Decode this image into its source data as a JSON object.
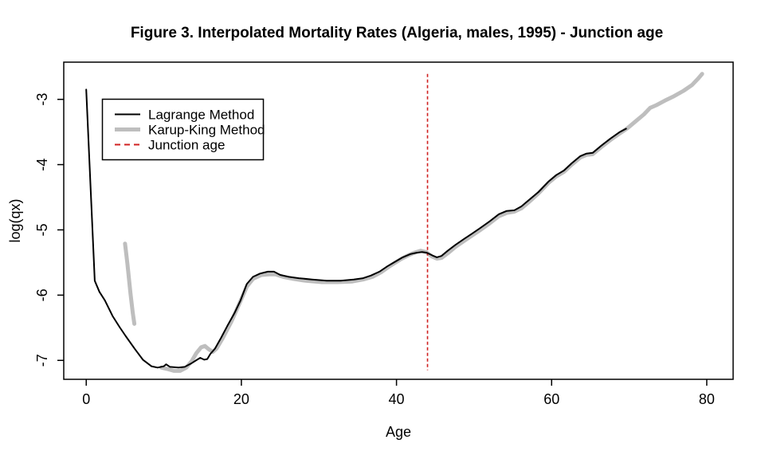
{
  "page": {
    "background": "#FFFFFF"
  },
  "chart_data": {
    "type": "line",
    "title": "Figure 3. Interpolated Mortality Rates (Algeria, males, 1995) - Junction age",
    "xlabel": "Age",
    "ylabel": "log(qx)",
    "xlim": [
      -2.9,
      83.4
    ],
    "ylim": [
      -7.29,
      -2.43
    ],
    "x_ticks": [
      0,
      20,
      40,
      60,
      80
    ],
    "y_ticks": [
      -7,
      -6,
      -5,
      -4,
      -3
    ],
    "grid": "off",
    "junction_age": 44,
    "junction_line": {
      "age": 44,
      "color": "#D02020",
      "style": "dashed",
      "from": -2.61,
      "to": -7.15
    },
    "legend": {
      "position": "top-left",
      "items": [
        {
          "label": "Lagrange Method",
          "swatch": "black-solid-line"
        },
        {
          "label": "Karup-King Method",
          "swatch": "thick-gray-line"
        },
        {
          "label": "Junction age",
          "swatch": "red-dashed-line"
        }
      ]
    },
    "series": [
      {
        "name": "Lagrange Method",
        "color": "#000000",
        "line_width": 2,
        "points": [
          [
            0.0,
            -2.85
          ],
          [
            1.1,
            -5.78
          ],
          [
            1.7,
            -5.95
          ],
          [
            2.4,
            -6.08
          ],
          [
            3.4,
            -6.32
          ],
          [
            4.3,
            -6.49
          ],
          [
            5.1,
            -6.63
          ],
          [
            6.3,
            -6.83
          ],
          [
            7.3,
            -6.99
          ],
          [
            8.4,
            -7.09
          ],
          [
            9.2,
            -7.11
          ],
          [
            10.0,
            -7.09
          ],
          [
            10.3,
            -7.06
          ],
          [
            10.8,
            -7.1
          ],
          [
            11.9,
            -7.11
          ],
          [
            12.7,
            -7.1
          ],
          [
            13.5,
            -7.05
          ],
          [
            14.3,
            -6.99
          ],
          [
            14.7,
            -6.96
          ],
          [
            15.2,
            -6.99
          ],
          [
            15.6,
            -6.98
          ],
          [
            16.0,
            -6.9
          ],
          [
            16.6,
            -6.82
          ],
          [
            17.4,
            -6.65
          ],
          [
            18.2,
            -6.47
          ],
          [
            19.1,
            -6.28
          ],
          [
            19.9,
            -6.08
          ],
          [
            20.7,
            -5.83
          ],
          [
            21.5,
            -5.72
          ],
          [
            22.4,
            -5.67
          ],
          [
            23.4,
            -5.64
          ],
          [
            24.2,
            -5.64
          ],
          [
            25.0,
            -5.69
          ],
          [
            26.1,
            -5.72
          ],
          [
            27.4,
            -5.74
          ],
          [
            29.1,
            -5.76
          ],
          [
            31.0,
            -5.78
          ],
          [
            32.8,
            -5.78
          ],
          [
            34.5,
            -5.76
          ],
          [
            35.7,
            -5.74
          ],
          [
            36.7,
            -5.7
          ],
          [
            37.8,
            -5.64
          ],
          [
            38.8,
            -5.56
          ],
          [
            39.8,
            -5.49
          ],
          [
            40.8,
            -5.42
          ],
          [
            41.8,
            -5.37
          ],
          [
            42.6,
            -5.35
          ],
          [
            43.3,
            -5.34
          ],
          [
            43.9,
            -5.35
          ],
          [
            44.6,
            -5.39
          ],
          [
            45.2,
            -5.42
          ],
          [
            45.8,
            -5.4
          ],
          [
            46.6,
            -5.32
          ],
          [
            47.6,
            -5.23
          ],
          [
            48.7,
            -5.14
          ],
          [
            49.7,
            -5.06
          ],
          [
            50.7,
            -4.98
          ],
          [
            52.0,
            -4.87
          ],
          [
            53.2,
            -4.76
          ],
          [
            54.2,
            -4.71
          ],
          [
            55.2,
            -4.7
          ],
          [
            56.1,
            -4.64
          ],
          [
            57.1,
            -4.54
          ],
          [
            58.3,
            -4.42
          ],
          [
            59.6,
            -4.26
          ],
          [
            60.6,
            -4.16
          ],
          [
            61.6,
            -4.09
          ],
          [
            62.6,
            -3.98
          ],
          [
            63.7,
            -3.87
          ],
          [
            64.5,
            -3.83
          ],
          [
            65.3,
            -3.82
          ],
          [
            66.3,
            -3.72
          ],
          [
            67.6,
            -3.6
          ],
          [
            68.8,
            -3.5
          ],
          [
            69.6,
            -3.45
          ]
        ]
      },
      {
        "name": "Karup-King Method",
        "color": "#BEBEBE",
        "line_width": 5,
        "segments": [
          [
            [
              5.0,
              -5.21
            ],
            [
              5.3,
              -5.51
            ],
            [
              5.7,
              -5.97
            ],
            [
              6.0,
              -6.27
            ],
            [
              6.2,
              -6.44
            ]
          ],
          [
            [
              9.7,
              -7.11
            ],
            [
              10.4,
              -7.13
            ],
            [
              11.3,
              -7.16
            ],
            [
              12.1,
              -7.16
            ],
            [
              12.9,
              -7.11
            ],
            [
              13.6,
              -7.01
            ],
            [
              14.2,
              -6.89
            ],
            [
              14.8,
              -6.8
            ],
            [
              15.3,
              -6.78
            ],
            [
              15.8,
              -6.83
            ],
            [
              16.3,
              -6.87
            ],
            [
              16.8,
              -6.82
            ],
            [
              17.6,
              -6.66
            ],
            [
              18.7,
              -6.41
            ],
            [
              19.7,
              -6.14
            ],
            [
              20.7,
              -5.87
            ],
            [
              21.5,
              -5.75
            ],
            [
              22.6,
              -5.69
            ],
            [
              23.6,
              -5.68
            ],
            [
              24.4,
              -5.68
            ],
            [
              25.4,
              -5.72
            ],
            [
              26.7,
              -5.75
            ],
            [
              28.3,
              -5.78
            ],
            [
              30.4,
              -5.8
            ],
            [
              32.4,
              -5.8
            ],
            [
              34.3,
              -5.79
            ],
            [
              35.7,
              -5.76
            ],
            [
              36.9,
              -5.72
            ],
            [
              38.0,
              -5.65
            ],
            [
              39.2,
              -5.55
            ],
            [
              40.4,
              -5.46
            ],
            [
              41.5,
              -5.39
            ],
            [
              42.3,
              -5.35
            ],
            [
              43.1,
              -5.32
            ],
            [
              43.8,
              -5.34
            ],
            [
              44.6,
              -5.41
            ],
            [
              45.2,
              -5.44
            ],
            [
              45.8,
              -5.43
            ],
            [
              46.6,
              -5.36
            ],
            [
              47.6,
              -5.26
            ],
            [
              48.7,
              -5.17
            ],
            [
              49.7,
              -5.09
            ],
            [
              50.7,
              -5.01
            ],
            [
              52.0,
              -4.9
            ],
            [
              53.2,
              -4.79
            ],
            [
              54.2,
              -4.74
            ],
            [
              55.2,
              -4.72
            ],
            [
              56.1,
              -4.67
            ],
            [
              57.1,
              -4.57
            ],
            [
              58.3,
              -4.44
            ],
            [
              59.6,
              -4.28
            ],
            [
              60.6,
              -4.18
            ],
            [
              61.6,
              -4.11
            ],
            [
              62.6,
              -4.0
            ],
            [
              63.7,
              -3.89
            ],
            [
              64.5,
              -3.85
            ],
            [
              65.3,
              -3.84
            ],
            [
              66.3,
              -3.74
            ],
            [
              67.6,
              -3.62
            ],
            [
              68.8,
              -3.52
            ],
            [
              69.8,
              -3.44
            ],
            [
              70.9,
              -3.33
            ],
            [
              71.9,
              -3.23
            ],
            [
              72.7,
              -3.13
            ],
            [
              73.5,
              -3.09
            ],
            [
              74.6,
              -3.02
            ],
            [
              75.8,
              -2.95
            ],
            [
              77.0,
              -2.87
            ],
            [
              78.1,
              -2.78
            ],
            [
              78.9,
              -2.68
            ],
            [
              79.4,
              -2.61
            ]
          ]
        ]
      }
    ]
  }
}
